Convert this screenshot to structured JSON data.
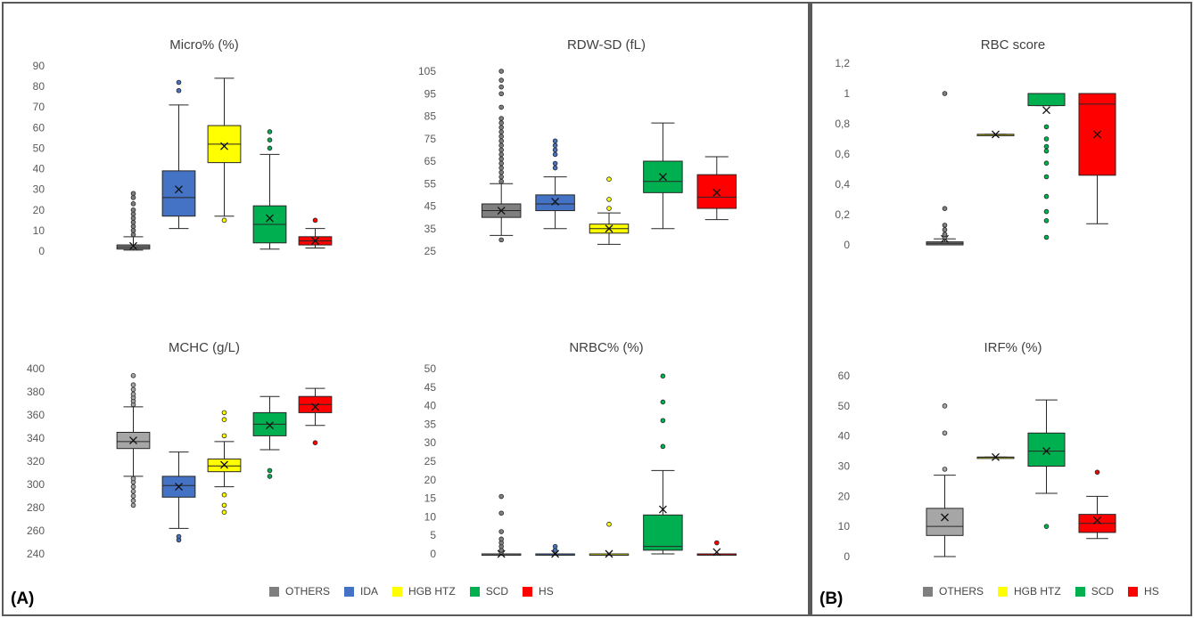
{
  "panel_labels": {
    "a": "(A)",
    "b": "(B)"
  },
  "legend_a": [
    {
      "label": "OTHERS",
      "color": "#7f7f7f"
    },
    {
      "label": "IDA",
      "color": "#4472c4"
    },
    {
      "label": "HGB HTZ",
      "color": "#ffff00"
    },
    {
      "label": "SCD",
      "color": "#00b050"
    },
    {
      "label": "HS",
      "color": "#ff0000"
    }
  ],
  "legend_b": [
    {
      "label": "OTHERS",
      "color": "#7f7f7f"
    },
    {
      "label": "HGB HTZ",
      "color": "#ffff00"
    },
    {
      "label": "SCD",
      "color": "#00b050"
    },
    {
      "label": "HS",
      "color": "#ff0000"
    }
  ],
  "chart_data": [
    {
      "type": "box",
      "title": "Micro% (%)",
      "ylim": [
        0,
        90
      ],
      "yticks": [
        "0",
        "10",
        "20",
        "30",
        "40",
        "50",
        "60",
        "70",
        "80",
        "90"
      ],
      "grid": false,
      "series": [
        {
          "name": "OTHERS",
          "color": "#7f7f7f",
          "min": 0.5,
          "q1": 1,
          "median": 2,
          "q3": 3,
          "max": 7,
          "mean": 2.5,
          "outliers": [
            8,
            10,
            12,
            14,
            16,
            18,
            20,
            23,
            26,
            28
          ]
        },
        {
          "name": "IDA",
          "color": "#4472c4",
          "min": 11,
          "q1": 17,
          "median": 26,
          "q3": 39,
          "max": 71,
          "mean": 30,
          "outliers": [
            78,
            82
          ]
        },
        {
          "name": "HGB HTZ",
          "color": "#ffff00",
          "min": 17,
          "q1": 43,
          "median": 52,
          "q3": 61,
          "max": 84,
          "mean": 51,
          "outliers": [
            15
          ]
        },
        {
          "name": "SCD",
          "color": "#00b050",
          "min": 1,
          "q1": 4,
          "median": 13,
          "q3": 22,
          "max": 47,
          "mean": 16,
          "outliers": [
            50,
            54,
            58
          ]
        },
        {
          "name": "HS",
          "color": "#ff0000",
          "min": 1.5,
          "q1": 3,
          "median": 5,
          "q3": 7,
          "max": 11,
          "mean": 5,
          "outliers": [
            15
          ]
        }
      ]
    },
    {
      "type": "box",
      "title": "RDW-SD (fL)",
      "ylim": [
        25,
        105
      ],
      "yticks": [
        "25",
        "35",
        "45",
        "55",
        "65",
        "75",
        "85",
        "95",
        "105"
      ],
      "grid": false,
      "series": [
        {
          "name": "OTHERS",
          "color": "#7f7f7f",
          "min": 32,
          "q1": 40,
          "median": 43,
          "q3": 46,
          "max": 55,
          "mean": 43,
          "outliers": [
            30,
            56,
            58,
            60,
            62,
            64,
            66,
            68,
            70,
            72,
            74,
            76,
            78,
            80,
            82,
            84,
            89,
            95,
            98,
            101,
            105
          ]
        },
        {
          "name": "IDA",
          "color": "#4472c4",
          "min": 35,
          "q1": 43,
          "median": 46,
          "q3": 50,
          "max": 58,
          "mean": 47,
          "outliers": [
            62,
            64,
            68,
            70,
            72,
            74
          ]
        },
        {
          "name": "HGB HTZ",
          "color": "#ffff00",
          "min": 28,
          "q1": 33,
          "median": 35,
          "q3": 37,
          "max": 42,
          "mean": 35,
          "outliers": [
            44,
            48,
            57
          ]
        },
        {
          "name": "SCD",
          "color": "#00b050",
          "min": 35,
          "q1": 51,
          "median": 56,
          "q3": 65,
          "max": 82,
          "mean": 58,
          "outliers": []
        },
        {
          "name": "HS",
          "color": "#ff0000",
          "min": 39,
          "q1": 44,
          "median": 49,
          "q3": 59,
          "max": 67,
          "mean": 51,
          "outliers": []
        }
      ]
    },
    {
      "type": "box",
      "title": "MCHC (g/L)",
      "ylim": [
        240,
        400
      ],
      "yticks": [
        "240",
        "260",
        "280",
        "300",
        "320",
        "340",
        "360",
        "380",
        "400"
      ],
      "grid": false,
      "series": [
        {
          "name": "OTHERS",
          "color": "#a6a6a6",
          "min": 307,
          "q1": 331,
          "median": 337,
          "q3": 345,
          "max": 367,
          "mean": 338,
          "outliers": [
            282,
            286,
            290,
            294,
            298,
            302,
            305,
            369,
            372,
            375,
            378,
            382,
            386,
            394
          ]
        },
        {
          "name": "IDA",
          "color": "#4472c4",
          "min": 262,
          "q1": 289,
          "median": 299,
          "q3": 307,
          "max": 328,
          "mean": 298,
          "outliers": [
            252,
            255
          ]
        },
        {
          "name": "HGB HTZ",
          "color": "#ffff00",
          "min": 298,
          "q1": 311,
          "median": 316,
          "q3": 322,
          "max": 337,
          "mean": 317,
          "outliers": [
            276,
            282,
            291,
            342,
            356,
            362
          ]
        },
        {
          "name": "SCD",
          "color": "#00b050",
          "min": 330,
          "q1": 342,
          "median": 352,
          "q3": 362,
          "max": 376,
          "mean": 351,
          "outliers": [
            307,
            312
          ]
        },
        {
          "name": "HS",
          "color": "#ff0000",
          "min": 351,
          "q1": 362,
          "median": 369,
          "q3": 376,
          "max": 383,
          "mean": 367,
          "outliers": [
            336
          ]
        }
      ]
    },
    {
      "type": "box",
      "title": "NRBC% (%)",
      "ylim": [
        0,
        50
      ],
      "yticks": [
        "0",
        "5",
        "10",
        "15",
        "20",
        "25",
        "30",
        "35",
        "40",
        "45",
        "50"
      ],
      "grid": false,
      "series": [
        {
          "name": "OTHERS",
          "color": "#7f7f7f",
          "min": 0,
          "q1": 0,
          "median": 0,
          "q3": 0,
          "max": 0,
          "mean": 0,
          "outliers": [
            0.5,
            1,
            2,
            3,
            4,
            6,
            11,
            15.5
          ]
        },
        {
          "name": "IDA",
          "color": "#4472c4",
          "min": 0,
          "q1": 0,
          "median": 0,
          "q3": 0,
          "max": 0,
          "mean": 0,
          "outliers": [
            1,
            2
          ]
        },
        {
          "name": "HGB HTZ",
          "color": "#ffff00",
          "min": 0,
          "q1": 0,
          "median": 0,
          "q3": 0,
          "max": 0,
          "mean": 0,
          "outliers": [
            8
          ]
        },
        {
          "name": "SCD",
          "color": "#00b050",
          "min": 0,
          "q1": 1,
          "median": 2,
          "q3": 10.5,
          "max": 22.5,
          "mean": 12,
          "outliers": [
            29,
            36,
            41,
            48
          ]
        },
        {
          "name": "HS",
          "color": "#ff0000",
          "min": 0,
          "q1": 0,
          "median": 0,
          "q3": 0,
          "max": 0,
          "mean": 0.5,
          "outliers": [
            3
          ]
        }
      ]
    },
    {
      "type": "box",
      "title": "RBC score",
      "ylim": [
        0,
        1.2
      ],
      "yticks": [
        "0",
        "0,2",
        "0,4",
        "0,6",
        "0,8",
        "1",
        "1,2"
      ],
      "grid": false,
      "series": [
        {
          "name": "OTHERS",
          "color": "#7f7f7f",
          "min": 0,
          "q1": 0,
          "median": 0.01,
          "q3": 0.02,
          "max": 0.04,
          "mean": 0.04,
          "outliers": [
            0.05,
            0.07,
            0.1,
            0.13,
            0.24,
            1.0
          ]
        },
        {
          "name": "HGB HTZ",
          "color": "#ffff00",
          "min": 0.73,
          "q1": 0.73,
          "median": 0.73,
          "q3": 0.73,
          "max": 0.73,
          "mean": 0.73,
          "outliers": []
        },
        {
          "name": "SCD",
          "color": "#00b050",
          "min": 0.92,
          "q1": 0.92,
          "median": 1.0,
          "q3": 1.0,
          "max": 1.0,
          "mean": 0.89,
          "outliers": [
            0.05,
            0.16,
            0.22,
            0.32,
            0.45,
            0.54,
            0.62,
            0.65,
            0.7,
            0.78
          ]
        },
        {
          "name": "HS",
          "color": "#ff0000",
          "min": 0.14,
          "q1": 0.46,
          "median": 0.93,
          "q3": 1.0,
          "max": 1.0,
          "mean": 0.73,
          "outliers": []
        }
      ]
    },
    {
      "type": "box",
      "title": "IRF% (%)",
      "ylim": [
        0,
        60
      ],
      "yticks": [
        "0",
        "10",
        "20",
        "30",
        "40",
        "50",
        "60"
      ],
      "grid": false,
      "series": [
        {
          "name": "OTHERS",
          "color": "#a6a6a6",
          "min": 0,
          "q1": 7,
          "median": 10,
          "q3": 16,
          "max": 27,
          "mean": 13,
          "outliers": [
            29,
            41,
            50
          ]
        },
        {
          "name": "HGB HTZ",
          "color": "#ffff00",
          "min": 33,
          "q1": 33,
          "median": 33,
          "q3": 33,
          "max": 33,
          "mean": 33,
          "outliers": []
        },
        {
          "name": "SCD",
          "color": "#00b050",
          "min": 21,
          "q1": 30,
          "median": 35,
          "q3": 41,
          "max": 52,
          "mean": 35,
          "outliers": [
            10
          ]
        },
        {
          "name": "HS",
          "color": "#ff0000",
          "min": 6,
          "q1": 8,
          "median": 11,
          "q3": 14,
          "max": 20,
          "mean": 12,
          "outliers": [
            28
          ]
        }
      ]
    }
  ]
}
